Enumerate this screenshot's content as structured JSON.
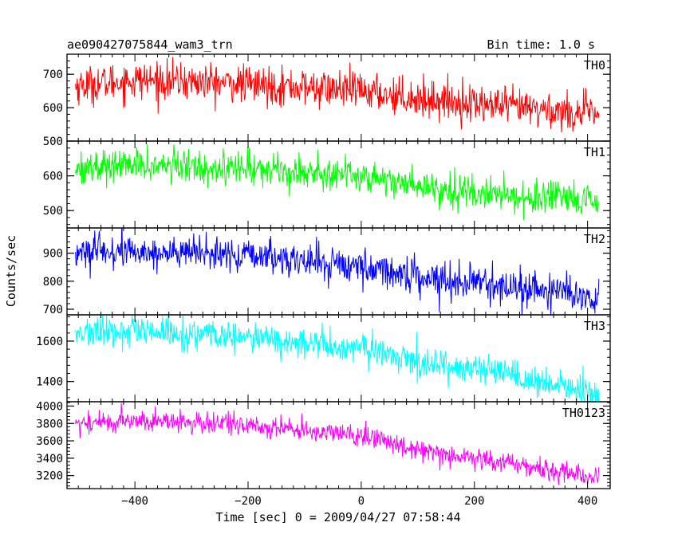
{
  "header": {
    "title": "ae090427075844_wam3_trn",
    "bin_time": "Bin time: 1.0 s"
  },
  "chart_data": {
    "type": "line",
    "title": "ae090427075844_wam3_trn",
    "xlabel": "Time [sec] 0 = 2009/04/27 07:58:44",
    "ylabel": "Counts/sec",
    "xlim": [
      -520,
      440
    ],
    "x_range": [
      -505,
      420
    ],
    "x_ticks": [
      -400,
      -200,
      0,
      200,
      400
    ],
    "x_tick_labels": [
      "−400",
      "−200",
      "0",
      "200",
      "400"
    ],
    "panels": [
      {
        "name": "TH0",
        "color": "#ff0000",
        "ylim": [
          500,
          760
        ],
        "y_ticks": [
          500,
          600,
          700
        ],
        "trend": [
          [
            -505,
            665
          ],
          [
            -400,
            682
          ],
          [
            -300,
            678
          ],
          [
            -200,
            670
          ],
          [
            -100,
            660
          ],
          [
            0,
            650
          ],
          [
            100,
            628
          ],
          [
            200,
            612
          ],
          [
            300,
            596
          ],
          [
            420,
            580
          ]
        ],
        "noise_sd": 28
      },
      {
        "name": "TH1",
        "color": "#00ff00",
        "ylim": [
          450,
          700
        ],
        "y_ticks": [
          500,
          600
        ],
        "trend": [
          [
            -505,
            625
          ],
          [
            -400,
            630
          ],
          [
            -300,
            626
          ],
          [
            -200,
            622
          ],
          [
            -100,
            612
          ],
          [
            0,
            602
          ],
          [
            100,
            572
          ],
          [
            200,
            552
          ],
          [
            300,
            538
          ],
          [
            420,
            522
          ]
        ],
        "noise_sd": 24
      },
      {
        "name": "TH2",
        "color": "#0000ff",
        "ylim": [
          680,
          990
        ],
        "y_ticks": [
          700,
          800,
          900
        ],
        "trend": [
          [
            -505,
            902
          ],
          [
            -400,
            905
          ],
          [
            -300,
            900
          ],
          [
            -200,
            890
          ],
          [
            -100,
            873
          ],
          [
            0,
            852
          ],
          [
            100,
            818
          ],
          [
            200,
            795
          ],
          [
            300,
            770
          ],
          [
            420,
            745
          ]
        ],
        "noise_sd": 30
      },
      {
        "name": "TH3",
        "color": "#00ffff",
        "ylim": [
          1300,
          1730
        ],
        "y_ticks": [
          1400,
          1600
        ],
        "trend": [
          [
            -505,
            1640
          ],
          [
            -400,
            1645
          ],
          [
            -300,
            1632
          ],
          [
            -200,
            1616
          ],
          [
            -100,
            1588
          ],
          [
            0,
            1562
          ],
          [
            100,
            1500
          ],
          [
            200,
            1462
          ],
          [
            300,
            1400
          ],
          [
            420,
            1338
          ]
        ],
        "noise_sd": 38
      },
      {
        "name": "TH0123",
        "color": "#ff00ff",
        "ylim": [
          3050,
          4050
        ],
        "y_ticks": [
          3200,
          3400,
          3600,
          3800,
          4000
        ],
        "trend": [
          [
            -505,
            3798
          ],
          [
            -400,
            3832
          ],
          [
            -300,
            3812
          ],
          [
            -200,
            3778
          ],
          [
            -100,
            3720
          ],
          [
            0,
            3655
          ],
          [
            100,
            3510
          ],
          [
            200,
            3400
          ],
          [
            300,
            3300
          ],
          [
            420,
            3178
          ]
        ],
        "noise_sd": 62
      }
    ]
  }
}
